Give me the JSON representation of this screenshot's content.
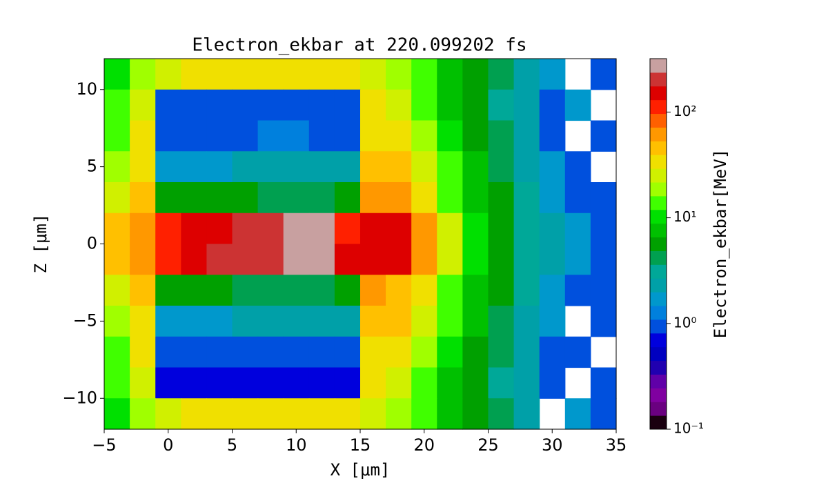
{
  "chart_data": {
    "type": "heatmap",
    "title": "Electron_ekbar at 220.099202 fs",
    "xlabel": "X  [μm]",
    "ylabel": "Z  [μm]",
    "x": [
      -4,
      -2,
      0,
      2,
      4,
      6,
      8,
      10,
      12,
      14,
      16,
      18,
      20,
      22,
      24,
      26,
      28,
      30,
      32,
      34
    ],
    "y": [
      11,
      9,
      7,
      5,
      3,
      1,
      -1,
      -3,
      -5,
      -7,
      -9,
      -11
    ],
    "values": [
      [
        10,
        20,
        25,
        30,
        30,
        30,
        30,
        30,
        30,
        30,
        25,
        20,
        12,
        8,
        6,
        4,
        2,
        1.5,
        null,
        1
      ],
      [
        12,
        25,
        1,
        1,
        1,
        1,
        1,
        1,
        1,
        1,
        30,
        25,
        15,
        8,
        5,
        3,
        2,
        1,
        1.5,
        null
      ],
      [
        15,
        30,
        1,
        1,
        1,
        1,
        1.2,
        1.2,
        1,
        1,
        35,
        30,
        20,
        10,
        6,
        4,
        2,
        1,
        null,
        1
      ],
      [
        20,
        35,
        1.5,
        1.5,
        1.5,
        2,
        2,
        2,
        2,
        2,
        40,
        40,
        25,
        12,
        7,
        4,
        2,
        1.5,
        1,
        null
      ],
      [
        25,
        40,
        5,
        5,
        5,
        5,
        4,
        4,
        4,
        5,
        60,
        60,
        35,
        15,
        8,
        5,
        3,
        1.5,
        1,
        1
      ],
      [
        40,
        60,
        100,
        150,
        150,
        180,
        180,
        300,
        300,
        120,
        150,
        150,
        60,
        25,
        10,
        6,
        3,
        2,
        1.5,
        1
      ],
      [
        40,
        60,
        100,
        150,
        180,
        200,
        200,
        300,
        300,
        150,
        150,
        150,
        60,
        25,
        10,
        6,
        3,
        2,
        1.5,
        1
      ],
      [
        25,
        40,
        5,
        6,
        5,
        4,
        4,
        4,
        4,
        5,
        60,
        50,
        30,
        15,
        8,
        5,
        3,
        1.5,
        1,
        1
      ],
      [
        20,
        35,
        1.5,
        1.5,
        1.5,
        2,
        2,
        2,
        2,
        2,
        40,
        40,
        25,
        12,
        7,
        4,
        2,
        1.5,
        null,
        1
      ],
      [
        15,
        30,
        1,
        1,
        1,
        1,
        1,
        1,
        1,
        1,
        35,
        30,
        20,
        10,
        6,
        4,
        2,
        1,
        1,
        null
      ],
      [
        12,
        25,
        0.8,
        0.8,
        0.8,
        0.8,
        0.8,
        0.8,
        0.8,
        0.8,
        30,
        25,
        15,
        8,
        5,
        3,
        2,
        1,
        null,
        1
      ],
      [
        10,
        20,
        25,
        30,
        30,
        30,
        30,
        30,
        30,
        30,
        25,
        20,
        12,
        8,
        6,
        4,
        2,
        null,
        1.5,
        1
      ]
    ],
    "xlim": [
      -5,
      35
    ],
    "xticks": [
      {
        "value": -5,
        "label": "−5"
      },
      0,
      5,
      10,
      15,
      20,
      25,
      30,
      35
    ],
    "ylim": [
      -12,
      12
    ],
    "yticks": [
      {
        "value": -10,
        "label": "−10"
      },
      {
        "value": -5,
        "label": "−5"
      },
      0,
      5,
      10
    ],
    "colorbar": {
      "label": "Electron_ekbar[MeV]",
      "log": true,
      "lim": [
        0.1,
        320
      ],
      "ticks": [
        {
          "value": 0.1,
          "label": "10⁻¹"
        },
        {
          "value": 1,
          "label": "10⁰"
        },
        {
          "value": 10,
          "label": "10¹"
        },
        {
          "value": 100,
          "label": "10²"
        }
      ],
      "colors": [
        "#1a0010",
        "#6a0080",
        "#8000a0",
        "#6000a8",
        "#2000b0",
        "#0000c0",
        "#0000dd",
        "#0050dd",
        "#0080dd",
        "#0098cc",
        "#00a0a8",
        "#00a898",
        "#00a050",
        "#00a000",
        "#00c000",
        "#00e000",
        "#40ff00",
        "#a0ff00",
        "#d0f000",
        "#f0e000",
        "#ffc000",
        "#ff9800",
        "#ff6000",
        "#ff2000",
        "#dd0000",
        "#cc3333",
        "#c8a0a0"
      ]
    }
  }
}
